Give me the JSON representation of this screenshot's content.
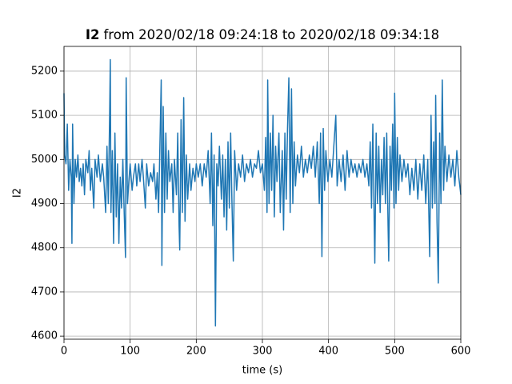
{
  "chart_data": {
    "type": "line",
    "title": {
      "variable": "I2",
      "text": "from 2020/02/18 09:24:18 to 2020/02/18 09:34:18"
    },
    "xlabel": "time (s)",
    "ylabel": "I2",
    "xlim": [
      0,
      600
    ],
    "xticks": [
      0,
      100,
      200,
      300,
      400,
      500,
      600
    ],
    "ylim": [
      4593,
      5256
    ],
    "yticks": [
      4600,
      4700,
      4800,
      4900,
      5000,
      5100,
      5200
    ],
    "grid": true,
    "series": [
      {
        "color": "#1f77b4",
        "x": [
          0,
          1,
          3,
          5,
          7,
          9,
          11,
          12,
          13,
          15,
          17,
          19,
          21,
          23,
          25,
          27,
          29,
          31,
          33,
          36,
          38,
          40,
          42,
          45,
          47,
          50,
          52,
          55,
          58,
          60,
          63,
          65,
          67,
          69,
          70,
          71,
          73,
          75,
          77,
          79,
          81,
          83,
          85,
          87,
          89,
          91,
          93,
          94,
          96,
          98,
          100,
          103,
          105,
          108,
          110,
          113,
          115,
          118,
          120,
          123,
          125,
          128,
          131,
          134,
          136,
          139,
          141,
          143,
          145,
          147,
          148,
          150,
          152,
          154,
          156,
          158,
          160,
          163,
          165,
          167,
          170,
          172,
          174,
          175,
          177,
          179,
          181,
          183,
          185,
          187,
          190,
          192,
          195,
          198,
          200,
          203,
          206,
          209,
          212,
          215,
          218,
          221,
          223,
          225,
          227,
          229,
          231,
          233,
          235,
          238,
          240,
          242,
          244,
          246,
          248,
          250,
          252,
          254,
          256,
          258,
          261,
          264,
          267,
          270,
          273,
          276,
          279,
          282,
          285,
          288,
          291,
          294,
          297,
          300,
          303,
          305,
          307,
          308,
          310,
          312,
          314,
          316,
          318,
          320,
          322,
          325,
          327,
          330,
          332,
          334,
          336,
          338,
          340,
          342,
          344,
          346,
          348,
          350,
          353,
          356,
          359,
          362,
          365,
          368,
          371,
          374,
          377,
          380,
          383,
          386,
          388,
          390,
          392,
          394,
          396,
          399,
          402,
          405,
          408,
          411,
          413,
          416,
          419,
          422,
          425,
          428,
          431,
          434,
          437,
          440,
          443,
          446,
          449,
          452,
          455,
          458,
          461,
          463,
          465,
          467,
          469,
          470,
          472,
          474,
          476,
          478,
          480,
          482,
          484,
          486,
          488,
          490,
          491,
          493,
          495,
          497,
          499,
          500,
          502,
          504,
          506,
          508,
          511,
          514,
          517,
          520,
          523,
          526,
          529,
          532,
          535,
          538,
          541,
          544,
          547,
          550,
          553,
          555,
          557,
          559,
          561,
          562,
          564,
          566,
          568,
          570,
          572,
          574,
          576,
          579,
          582,
          585,
          588,
          591,
          594,
          597,
          600
        ],
        "values": [
          5150,
          5010,
          4990,
          5080,
          4930,
          5000,
          4960,
          4810,
          5080,
          4900,
          5000,
          4960,
          5010,
          4950,
          4980,
          4940,
          4990,
          4920,
          5000,
          4970,
          5020,
          4930,
          4980,
          4890,
          5000,
          4960,
          5010,
          4950,
          4990,
          4960,
          4880,
          5030,
          4900,
          5100,
          5226,
          4880,
          5020,
          4810,
          5060,
          4870,
          4990,
          4810,
          4960,
          4890,
          5000,
          4880,
          4778,
          5185,
          4900,
          4950,
          4990,
          4930,
          4960,
          4990,
          4940,
          4990,
          4950,
          5000,
          4960,
          4890,
          4990,
          4940,
          4970,
          4950,
          4990,
          4910,
          4970,
          4880,
          5030,
          5180,
          4760,
          5120,
          4880,
          5060,
          4910,
          5020,
          4950,
          4990,
          4880,
          5000,
          4920,
          5060,
          4850,
          4795,
          5090,
          4880,
          5140,
          4860,
          5010,
          4910,
          4990,
          4930,
          4980,
          4950,
          4990,
          4960,
          4990,
          4940,
          4990,
          4960,
          5020,
          4900,
          5060,
          4850,
          5010,
          4623,
          4990,
          4940,
          5030,
          4910,
          5010,
          4870,
          5000,
          4840,
          5040,
          4890,
          5060,
          4900,
          4770,
          5020,
          4930,
          4990,
          4960,
          5010,
          4950,
          4990,
          4970,
          5000,
          4960,
          4990,
          4980,
          5020,
          4970,
          4990,
          4930,
          5050,
          4880,
          5180,
          4900,
          5060,
          4930,
          5100,
          4870,
          5030,
          4950,
          5060,
          4880,
          5020,
          4840,
          5060,
          4910,
          5070,
          5185,
          4880,
          5160,
          4900,
          5040,
          4940,
          5010,
          4970,
          5030,
          4960,
          5000,
          4970,
          5010,
          4980,
          5030,
          4960,
          5040,
          4900,
          5060,
          4780,
          5070,
          4930,
          5020,
          4950,
          5000,
          4960,
          5030,
          5100,
          4940,
          5000,
          4950,
          5010,
          4930,
          5020,
          4960,
          5000,
          4970,
          4990,
          4960,
          4990,
          4970,
          5000,
          4960,
          4990,
          4940,
          5040,
          4890,
          5080,
          4860,
          4765,
          5060,
          4900,
          5030,
          4880,
          5000,
          4920,
          5050,
          4900,
          5060,
          4850,
          4770,
          5030,
          4930,
          5080,
          4890,
          5150,
          4900,
          5050,
          4930,
          5010,
          4950,
          5000,
          4960,
          4990,
          4920,
          4980,
          4930,
          5000,
          4910,
          4990,
          4930,
          5010,
          4900,
          5000,
          4780,
          5100,
          4890,
          5040,
          4900,
          5145,
          4860,
          4720,
          5060,
          4900,
          5180,
          4930,
          5030,
          4950,
          5010,
          4960,
          5000,
          4940,
          5020,
          4960,
          4920
        ]
      }
    ]
  }
}
